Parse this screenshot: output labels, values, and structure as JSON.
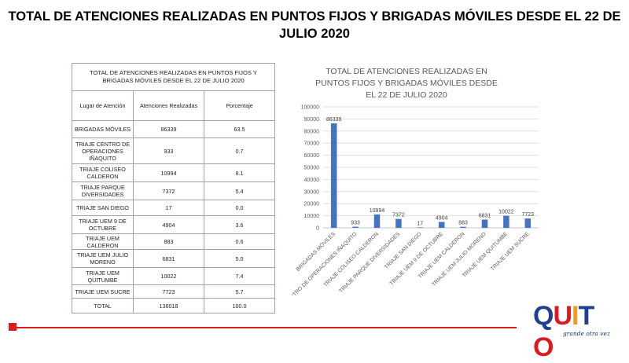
{
  "page_title": "TOTAL DE ATENCIONES REALIZADAS EN PUNTOS FIJOS Y BRIGADAS MÓVILES DESDE EL 22 DE JULIO 2020",
  "table": {
    "caption": "TOTAL  DE ATENCIONES REALIZADAS EN PUNTOS FIJOS Y BRIGADAS MÓVILES DESDE EL 22 DE JULIO 2020",
    "headers": [
      "Lugar de Atención",
      "Atenciones Realizadas",
      "Porcentaje"
    ],
    "rows": [
      [
        "BRIGADAS MÓVILES",
        "86339",
        "63.5"
      ],
      [
        "TRIAJE CENTRO DE OPERACIONES IÑAQUITO",
        "933",
        "0.7"
      ],
      [
        "TRIAJE COLISEO CALDERON",
        "10994",
        "8.1"
      ],
      [
        "TRIAJE PARQUE DIVERSIDADES",
        "7372",
        "5.4"
      ],
      [
        "TRIAJE SAN DIEGO",
        "17",
        "0.0"
      ],
      [
        "TRIAJE UEM 9 DE OCTUBRE",
        "4904",
        "3.6"
      ],
      [
        "TRIAJE UEM CALDERON",
        "883",
        "0.6"
      ],
      [
        "TRIAJE UEM JULIO MORENO",
        "6831",
        "5.0"
      ],
      [
        "TRIAJE UEM QUITUMBE",
        "10022",
        "7.4"
      ],
      [
        "TRIAJE UEM SUCRE",
        "7723",
        "5.7"
      ],
      [
        "TOTAL",
        "136018",
        "100.0"
      ]
    ]
  },
  "chart_data": {
    "type": "bar",
    "title": "TOTAL DE ATENCIONES REALIZADAS EN PUNTOS FIJOS Y BRIGADAS MÓVILES DESDE EL 22 DE JULIO 2020",
    "title_lines": [
      "TOTAL DE ATENCIONES REALIZADAS EN",
      "PUNTOS FIJOS Y BRIGADAS MÓVILES DESDE",
      "EL 22 DE JULIO 2020"
    ],
    "categories": [
      "BRIGADAS MÓVILES",
      "TRIAJE CENTRO DE OPERACIONES IÑAQUITO",
      "TRIAJE COLISEO CALDERON",
      "TRIAJE PARQUE DIVERSIDADES",
      "TRIAJE SAN DIEGO",
      "TRIAJE UEM 9 DE OCTUBRE",
      "TRIAJE UEM CALDERON",
      "TRIAJE UEM JULIO MORENO",
      "TRIAJE UEM QUITUMBE",
      "TRIAJE UEM SUCRE"
    ],
    "values": [
      86339,
      933,
      10994,
      7372,
      17,
      4904,
      883,
      6831,
      10022,
      7723
    ],
    "ylim": [
      0,
      100000
    ],
    "yticks": [
      0,
      10000,
      20000,
      30000,
      40000,
      50000,
      60000,
      70000,
      80000,
      90000,
      100000
    ],
    "xlabel": "",
    "ylabel": "",
    "grid": true,
    "bar_color": "#4472c4"
  },
  "logo": {
    "text": "QUITO",
    "tagline": "grande otra vez",
    "colors": [
      "#1f3f8f",
      "#e0191f",
      "#f29a1d",
      "#1f3f8f",
      "#e0191f"
    ]
  }
}
